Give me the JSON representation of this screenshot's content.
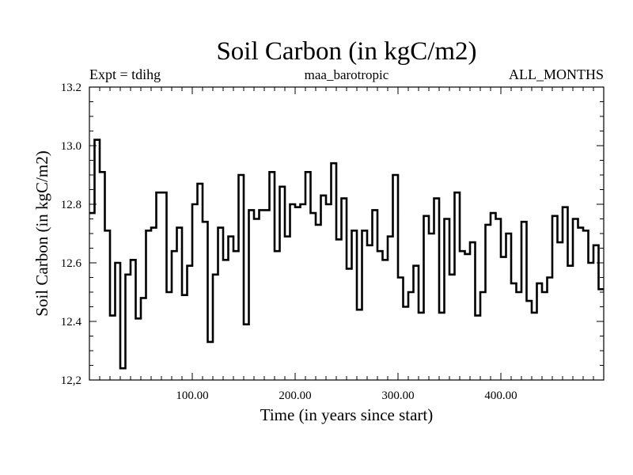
{
  "chart_data": {
    "type": "line",
    "step": true,
    "title": "Soil Carbon (in kgC/m2)",
    "subtitle_left": "Expt = tdihg",
    "subtitle_center": "maa_barotropic",
    "subtitle_right": "ALL_MONTHS",
    "xlabel": "Time (in years since start)",
    "ylabel": "Soil Carbon (in kgC/m2)",
    "xlim": [
      0,
      500
    ],
    "ylim": [
      12.2,
      13.2
    ],
    "xticks": [
      100,
      200,
      300,
      400
    ],
    "xtick_labels": [
      "100.00",
      "200.00",
      "300.00",
      "400.00"
    ],
    "yticks": [
      12.2,
      12.4,
      12.6,
      12.8,
      13.0,
      13.2
    ],
    "ytick_labels": [
      "12,2",
      "12.4",
      "12.6",
      "12.8",
      "13.0",
      "13.2"
    ],
    "series": [
      {
        "name": "Soil Carbon",
        "x": [
          0,
          5,
          10,
          15,
          20,
          25,
          30,
          35,
          40,
          45,
          50,
          55,
          60,
          65,
          70,
          75,
          80,
          85,
          90,
          95,
          100,
          105,
          110,
          115,
          120,
          125,
          130,
          135,
          140,
          145,
          150,
          155,
          160,
          165,
          170,
          175,
          180,
          185,
          190,
          195,
          200,
          205,
          210,
          215,
          220,
          225,
          230,
          235,
          240,
          245,
          250,
          255,
          260,
          265,
          270,
          275,
          280,
          285,
          290,
          295,
          300,
          305,
          310,
          315,
          320,
          325,
          330,
          335,
          340,
          345,
          350,
          355,
          360,
          365,
          370,
          375,
          380,
          385,
          390,
          395,
          400,
          405,
          410,
          415,
          420,
          425,
          430,
          435,
          440,
          445,
          450,
          455,
          460,
          465,
          470,
          475,
          480,
          485,
          490,
          495
        ],
        "values": [
          12.77,
          13.02,
          12.91,
          12.71,
          12.42,
          12.6,
          12.24,
          12.56,
          12.61,
          12.41,
          12.48,
          12.71,
          12.72,
          12.84,
          12.84,
          12.5,
          12.64,
          12.72,
          12.49,
          12.59,
          12.8,
          12.87,
          12.74,
          12.33,
          12.56,
          12.72,
          12.61,
          12.69,
          12.64,
          12.9,
          12.39,
          12.78,
          12.75,
          12.78,
          12.78,
          12.91,
          12.64,
          12.86,
          12.69,
          12.8,
          12.79,
          12.8,
          12.91,
          12.77,
          12.73,
          12.83,
          12.8,
          12.94,
          12.68,
          12.82,
          12.58,
          12.71,
          12.44,
          12.71,
          12.66,
          12.78,
          12.64,
          12.61,
          12.69,
          12.9,
          12.55,
          12.45,
          12.5,
          12.59,
          12.43,
          12.76,
          12.7,
          12.82,
          12.43,
          12.75,
          12.56,
          12.84,
          12.64,
          12.63,
          12.67,
          12.42,
          12.5,
          12.73,
          12.77,
          12.75,
          12.62,
          12.7,
          12.53,
          12.5,
          12.74,
          12.47,
          12.43,
          12.53,
          12.5,
          12.55,
          12.76,
          12.67,
          12.79,
          12.59,
          12.75,
          12.72,
          12.71,
          12.6,
          12.66,
          12.51
        ]
      }
    ]
  }
}
